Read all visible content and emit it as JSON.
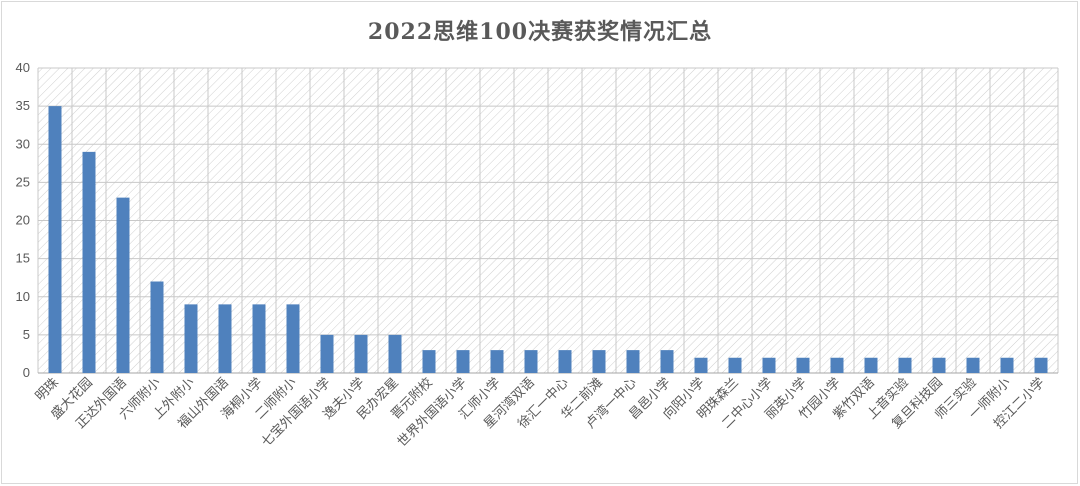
{
  "chart_data": {
    "type": "bar",
    "title": "2022思维100决赛获奖情况汇总",
    "xlabel": "",
    "ylabel": "",
    "ylim": [
      0,
      40
    ],
    "yticks": [
      0,
      5,
      10,
      15,
      20,
      25,
      30,
      35,
      40
    ],
    "grid": true,
    "legend": "none",
    "bar_color": "#4f81bd",
    "categories": [
      "明珠",
      "盛大花园",
      "正达外国语",
      "六师附小",
      "上外附小",
      "福山外国语",
      "海桐小学",
      "二师附小",
      "七宝外国语小学",
      "逸夫小学",
      "民办宏星",
      "晋元附校",
      "世界外国语小学",
      "汇师小学",
      "星河湾双语",
      "徐汇一中心",
      "华二前滩",
      "卢湾一中心",
      "昌邑小学",
      "向阳小学",
      "明珠森兰",
      "二中心小学",
      "丽英小学",
      "竹园小学",
      "紫竹双语",
      "上音实验",
      "复旦科技园",
      "师三实验",
      "一师附小",
      "控江二小学"
    ],
    "values": [
      35,
      29,
      23,
      12,
      9,
      9,
      9,
      9,
      5,
      5,
      5,
      3,
      3,
      3,
      3,
      3,
      3,
      3,
      3,
      2,
      2,
      2,
      2,
      2,
      2,
      2,
      2,
      2,
      2,
      2
    ]
  }
}
